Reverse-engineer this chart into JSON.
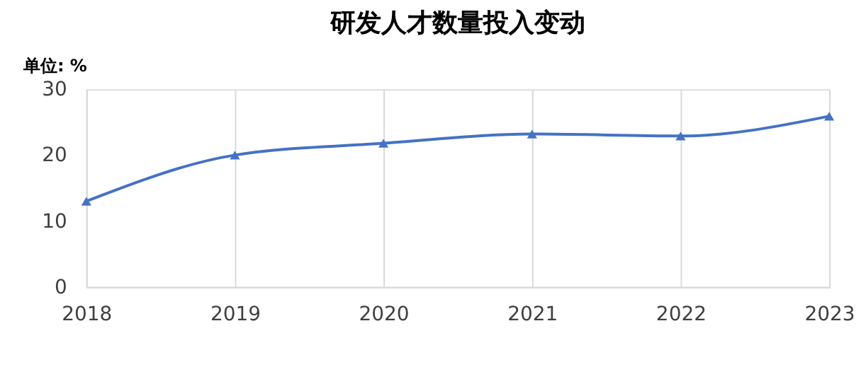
{
  "chart_data": {
    "type": "line",
    "title": "研发人才数量投入变动",
    "ylabel": "单位: %",
    "categories": [
      "2018",
      "2019",
      "2020",
      "2021",
      "2022",
      "2023"
    ],
    "series": [
      {
        "color": "#4472c4",
        "values": [
          13,
          20,
          21.8,
          23.2,
          22.9,
          25.9
        ]
      }
    ],
    "ylim": [
      0,
      30
    ],
    "yticks": [
      0,
      10,
      20,
      30
    ],
    "grid": "x",
    "marker": "triangle",
    "line_style": "solid"
  }
}
